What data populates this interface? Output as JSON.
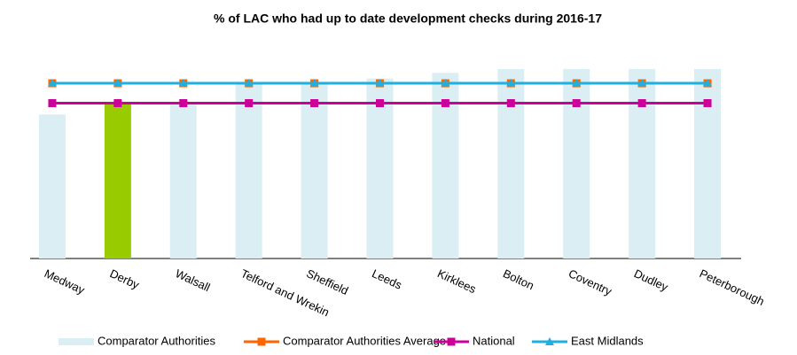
{
  "chart_data": {
    "type": "bar",
    "title": "% of LAC who had up to date development checks during 2016-17",
    "categories": [
      "Medway",
      "Derby",
      "Walsall",
      "Telford and Wrekin",
      "Sheffield",
      "Leeds",
      "Kirklees",
      "Bolton",
      "Coventry",
      "Dudley",
      "Peterborough"
    ],
    "ylim": [
      0,
      100
    ],
    "series": [
      {
        "name": "Comparator Authorities",
        "type": "bar",
        "color": "#daeef3",
        "colors": [
          "#daeef3",
          "#99cc00",
          "#daeef3",
          "#daeef3",
          "#daeef3",
          "#daeef3",
          "#daeef3",
          "#daeef3",
          "#daeef3",
          "#daeef3",
          "#daeef3"
        ],
        "values": [
          76,
          82,
          82,
          92,
          92,
          95,
          98,
          100,
          100,
          100,
          100
        ]
      },
      {
        "name": "Comparator Authorities Average",
        "type": "line",
        "marker": "square",
        "color": "#ff6600",
        "values": [
          92.5,
          92.5,
          92.5,
          92.5,
          92.5,
          92.5,
          92.5,
          92.5,
          92.5,
          92.5,
          92.5
        ]
      },
      {
        "name": "National",
        "type": "line",
        "marker": "square",
        "color": "#cc0099",
        "values": [
          82,
          82,
          82,
          82,
          82,
          82,
          82,
          82,
          82,
          82,
          82
        ]
      },
      {
        "name": "East Midlands",
        "type": "line",
        "marker": "triangle",
        "color": "#1fb0e0",
        "values": [
          92.5,
          92.5,
          92.5,
          92.5,
          92.5,
          92.5,
          92.5,
          92.5,
          92.5,
          92.5,
          92.5
        ]
      }
    ]
  }
}
